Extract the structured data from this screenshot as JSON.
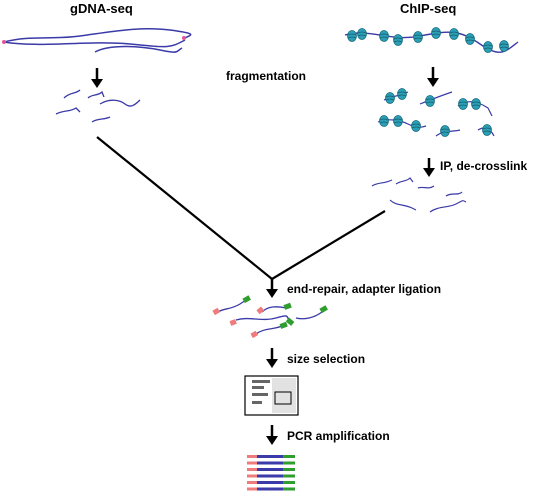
{
  "titles": {
    "left": "gDNA-seq",
    "right": "ChIP-seq"
  },
  "steps": {
    "fragmentation": "fragmentation",
    "ip": "IP, de-crosslink",
    "end_repair": "end-repair, adapter ligation",
    "size_selection": "size selection",
    "pcr": "PCR amplification"
  },
  "colors": {
    "dna": "#3a3aa8",
    "dna_end": "#e0559a",
    "nucleosome": "#2aa0b8",
    "adapter_red": "#f07b7b",
    "adapter_green": "#2f9e2f",
    "arrow": "#000000"
  },
  "icons": [
    "down-arrow-icon",
    "gel-icon",
    "nucleosome-icon",
    "adapter-icon"
  ],
  "pcr_products": {
    "count": 6
  }
}
